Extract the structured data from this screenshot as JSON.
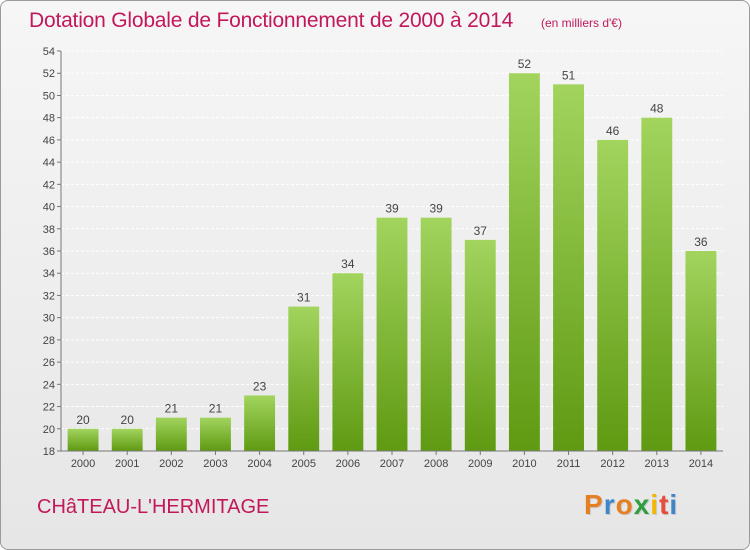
{
  "header": {
    "title": "Dotation Globale de Fonctionnement de 2000 à 2014",
    "unit": "(en milliers d'€)"
  },
  "footer": {
    "commune": "CHâTEAU-L'HERMITAGE",
    "brand": "Proxiti",
    "brand_colors": [
      "#e67e22",
      "#3f86c9",
      "#e67e22",
      "#2e9e3f",
      "#f2b705",
      "#e74c3c",
      "#3f86c9"
    ]
  },
  "colors": {
    "accent": "#c2185b",
    "bar_top": "#a2d45e",
    "bar_bottom": "#5f9a12",
    "grid": "#ffffff",
    "text": "#444444"
  },
  "chart_data": {
    "type": "bar",
    "title": "Dotation Globale de Fonctionnement de 2000 à 2014",
    "xlabel": "",
    "ylabel": "",
    "categories": [
      "2000",
      "2001",
      "2002",
      "2003",
      "2004",
      "2005",
      "2006",
      "2007",
      "2008",
      "2009",
      "2010",
      "2011",
      "2012",
      "2013",
      "2014"
    ],
    "values": [
      20,
      20,
      21,
      21,
      23,
      31,
      34,
      39,
      39,
      37,
      52,
      51,
      46,
      48,
      36
    ],
    "data_labels": [
      "20",
      "20",
      "21",
      "21",
      "23",
      "31",
      "34",
      "39",
      "39",
      "37",
      "52",
      "51",
      "46",
      "48",
      "36"
    ],
    "ylim": [
      18,
      54
    ],
    "yticks": [
      18,
      20,
      22,
      24,
      26,
      28,
      30,
      32,
      34,
      36,
      38,
      40,
      42,
      44,
      46,
      48,
      50,
      52,
      54
    ],
    "grid": true,
    "legend": "none"
  }
}
